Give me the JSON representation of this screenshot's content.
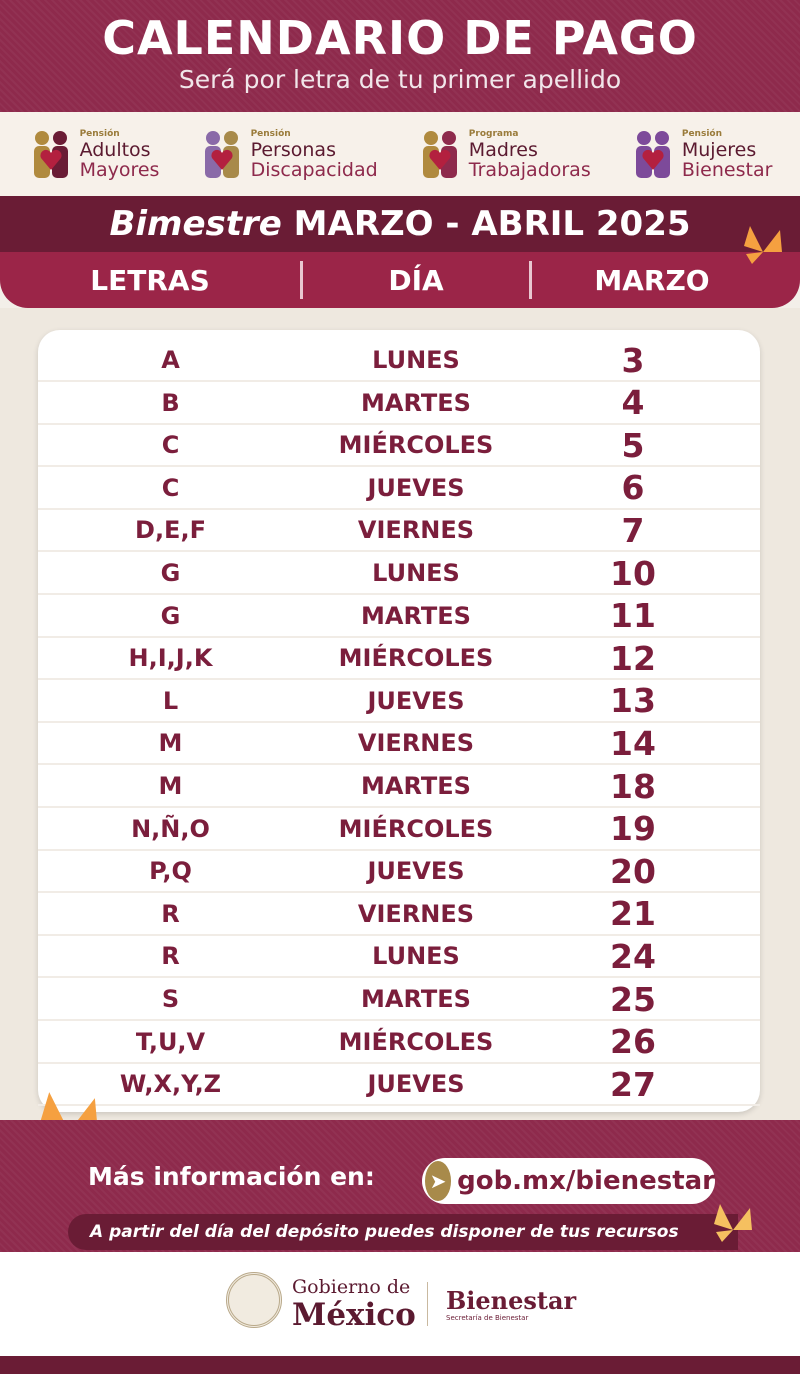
{
  "header": {
    "title": "CALENDARIO DE PAGO",
    "subtitle": "Será por letra de tu primer apellido"
  },
  "programs": [
    {
      "prefix": "Pensión",
      "line1": "Adultos",
      "line2": "Mayores",
      "icon": "elderly-couple-heart-icon"
    },
    {
      "prefix": "Pensión",
      "line1": "Personas",
      "line2": "Discapacidad",
      "icon": "disability-heart-icon"
    },
    {
      "prefix": "Programa",
      "line1": "Madres",
      "line2": "Trabajadoras",
      "icon": "mother-children-heart-icon"
    },
    {
      "prefix": "Pensión",
      "line1": "Mujeres",
      "line2": "Bienestar",
      "icon": "women-heart-icon"
    }
  ],
  "period": {
    "italic": "Bimestre",
    "text": "MARZO - ABRIL 2025"
  },
  "columns": {
    "letters": "LETRAS",
    "day": "DÍA",
    "month": "MARZO"
  },
  "rows": [
    {
      "l": "A",
      "d": "LUNES",
      "n": "3"
    },
    {
      "l": "B",
      "d": "MARTES",
      "n": "4"
    },
    {
      "l": "C",
      "d": "MIÉRCOLES",
      "n": "5"
    },
    {
      "l": "C",
      "d": "JUEVES",
      "n": "6"
    },
    {
      "l": "D,E,F",
      "d": "VIERNES",
      "n": "7"
    },
    {
      "l": "G",
      "d": "LUNES",
      "n": "10"
    },
    {
      "l": "G",
      "d": "MARTES",
      "n": "11"
    },
    {
      "l": "H,I,J,K",
      "d": "MIÉRCOLES",
      "n": "12"
    },
    {
      "l": "L",
      "d": "JUEVES",
      "n": "13"
    },
    {
      "l": "M",
      "d": "VIERNES",
      "n": "14"
    },
    {
      "l": "M",
      "d": "MARTES",
      "n": "18"
    },
    {
      "l": "N,Ñ,O",
      "d": "MIÉRCOLES",
      "n": "19"
    },
    {
      "l": "P,Q",
      "d": "JUEVES",
      "n": "20"
    },
    {
      "l": "R",
      "d": "VIERNES",
      "n": "21"
    },
    {
      "l": "R",
      "d": "LUNES",
      "n": "24"
    },
    {
      "l": "S",
      "d": "MARTES",
      "n": "25"
    },
    {
      "l": "T,U,V",
      "d": "MIÉRCOLES",
      "n": "26"
    },
    {
      "l": "W,X,Y,Z",
      "d": "JUEVES",
      "n": "27"
    }
  ],
  "info": {
    "label": "Más información en:",
    "url": "gob.mx/bienestar",
    "note": "A partir del día del depósito puedes disponer de tus recursos"
  },
  "footer": {
    "gob1": "Gobierno de",
    "gob2": "México",
    "bienestar": "Bienestar",
    "secretaria": "Secretaría de Bienestar"
  },
  "colors": {
    "maroon": "#8e2a4c",
    "dark_maroon": "#6a1c35",
    "text": "#7b1e3c",
    "gold": "#a88a4a",
    "butterfly": "#f5a040"
  }
}
